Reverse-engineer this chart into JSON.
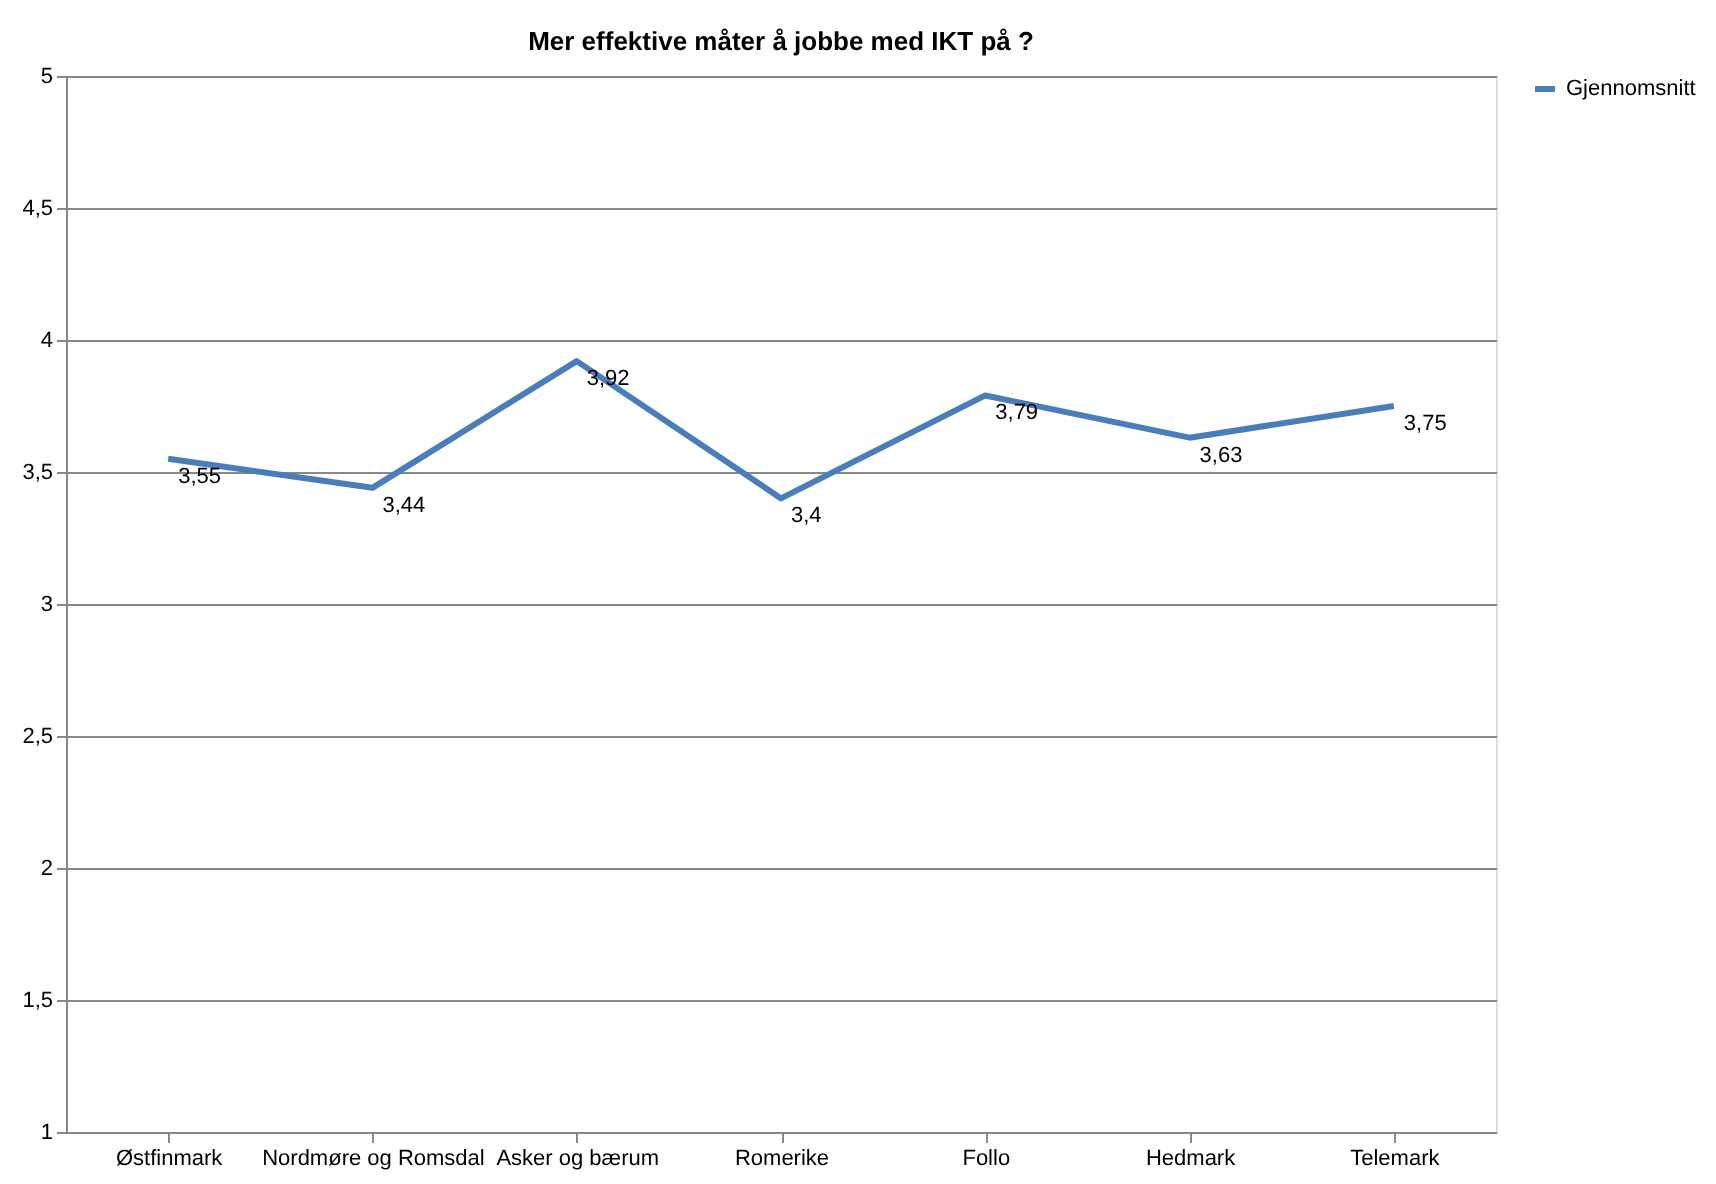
{
  "chart_data": {
    "type": "line",
    "title": "Mer effektive måter å jobbe med IKT på ?",
    "categories": [
      "Østfinmark",
      "Nordmøre og Romsdal",
      "Asker og bærum",
      "Romerike",
      "Follo",
      "Hedmark",
      "Telemark"
    ],
    "series": [
      {
        "name": "Gjennomsnitt",
        "color": "#4a7ebb",
        "values": [
          3.55,
          3.44,
          3.92,
          3.4,
          3.79,
          3.63,
          3.75
        ],
        "value_labels": [
          "3,55",
          "3,44",
          "3,92",
          "3,4",
          "3,79",
          "3,63",
          "3,75"
        ]
      }
    ],
    "ylim": [
      1,
      5
    ],
    "yticks": [
      1,
      {
        "value": 1.5,
        "label": "1,5"
      },
      2,
      {
        "value": 2.5,
        "label": "2,5"
      },
      3,
      {
        "value": 3.5,
        "label": "3,5"
      },
      4,
      {
        "value": 4.5,
        "label": "4,5"
      },
      5
    ],
    "grid": "y",
    "legend": "right",
    "marker": "none",
    "line_style": "solid"
  }
}
